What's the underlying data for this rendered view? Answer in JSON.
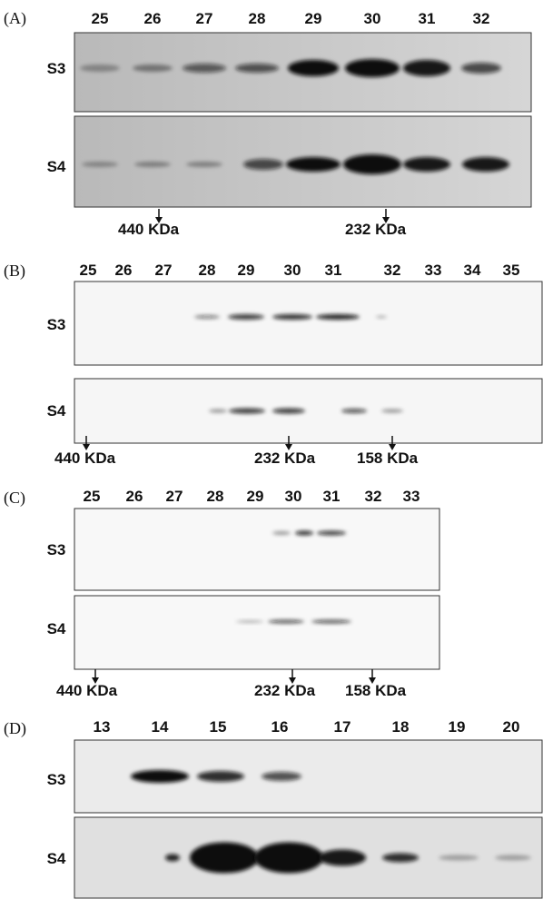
{
  "panels": [
    {
      "label": "(A)",
      "lanes": [
        "25",
        "26",
        "27",
        "28",
        "29",
        "30",
        "31",
        "32"
      ],
      "rows": [
        "S3",
        "S4"
      ],
      "markers": [
        "440 KDa",
        "232 KDa"
      ]
    },
    {
      "label": "(B)",
      "lanes": [
        "25",
        "26",
        "27",
        "28",
        "29",
        "30",
        "31",
        "32",
        "33",
        "34",
        "35"
      ],
      "rows": [
        "S3",
        "S4"
      ],
      "markers": [
        "440 KDa",
        "232 KDa",
        "158 KDa"
      ]
    },
    {
      "label": "(C)",
      "lanes": [
        "25",
        "26",
        "27",
        "28",
        "29",
        "30",
        "31",
        "32",
        "33"
      ],
      "rows": [
        "S3",
        "S4"
      ],
      "markers": [
        "440 KDa",
        "232 KDa",
        "158 KDa"
      ]
    },
    {
      "label": "(D)",
      "lanes": [
        "13",
        "14",
        "15",
        "16",
        "17",
        "18",
        "19",
        "20"
      ],
      "rows": [
        "S3",
        "S4"
      ]
    }
  ]
}
